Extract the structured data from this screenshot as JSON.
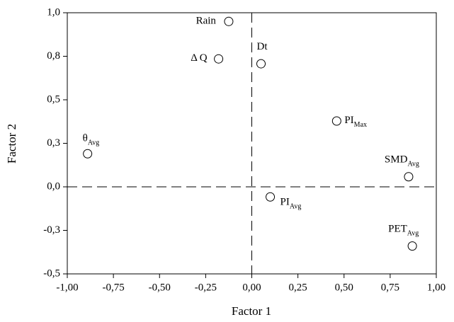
{
  "chart_data": {
    "type": "scatter",
    "x_label": "Factor 1",
    "y_label": "Factor 2",
    "labels": [
      "Rain",
      "Δ Q",
      "Dt",
      "PI",
      "θ",
      "SMD",
      "PI",
      "PET"
    ],
    "label_subscripts": [
      null,
      null,
      null,
      "Max",
      "Avg",
      "Avg",
      "Avg",
      "Avg"
    ],
    "x": [
      -0.125,
      -0.18,
      0.05,
      0.46,
      -0.89,
      0.85,
      0.1,
      0.87
    ],
    "y": [
      0.95,
      0.735,
      0.707,
      0.378,
      0.19,
      0.058,
      -0.058,
      -0.34
    ],
    "xlim": [
      -1,
      1
    ],
    "ylim": [
      -0.5,
      1
    ],
    "xticks": [
      {
        "value": -1,
        "label": "-1,00"
      },
      {
        "value": -0.75,
        "label": "-0,75"
      },
      {
        "value": -0.5,
        "label": "-0,50"
      },
      {
        "value": -0.25,
        "label": "-0,25"
      },
      {
        "value": 0,
        "label": "0,00"
      },
      {
        "value": 0.25,
        "label": "0,25"
      },
      {
        "value": 0.5,
        "label": "0,50"
      },
      {
        "value": 0.75,
        "label": "0,75"
      },
      {
        "value": 1,
        "label": "1,00"
      }
    ],
    "yticks": [
      {
        "value": -0.5,
        "label": "-0,5"
      },
      {
        "value": -0.25,
        "label": "-0,3"
      },
      {
        "value": 0,
        "label": "0,0"
      },
      {
        "value": 0.25,
        "label": "0,3"
      },
      {
        "value": 0.5,
        "label": "0,5"
      },
      {
        "value": 0.75,
        "label": "0,8"
      },
      {
        "value": 1,
        "label": "1,0"
      }
    ]
  }
}
